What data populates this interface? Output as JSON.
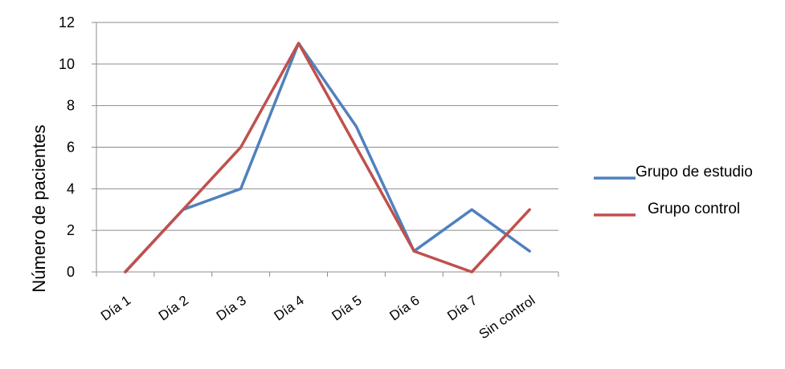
{
  "chart_data": {
    "type": "line",
    "title": "",
    "xlabel": "",
    "ylabel": "Número de pacientes",
    "categories": [
      "Día 1",
      "Día 2",
      "Día 3",
      "Día 4",
      "Día 5",
      "Día 6",
      "Día 7",
      "Sin control"
    ],
    "series": [
      {
        "name": "Grupo de estudio",
        "color": "#4F81BD",
        "values": [
          0,
          3,
          4,
          11,
          7,
          1,
          3,
          1
        ]
      },
      {
        "name": "Grupo control",
        "color": "#C0504D",
        "values": [
          0,
          3,
          6,
          11,
          6,
          1,
          0,
          3
        ]
      }
    ],
    "ylim": [
      0,
      12
    ],
    "yticks": [
      0,
      2,
      4,
      6,
      8,
      10,
      12
    ],
    "grid": true,
    "legend_position": "right"
  }
}
